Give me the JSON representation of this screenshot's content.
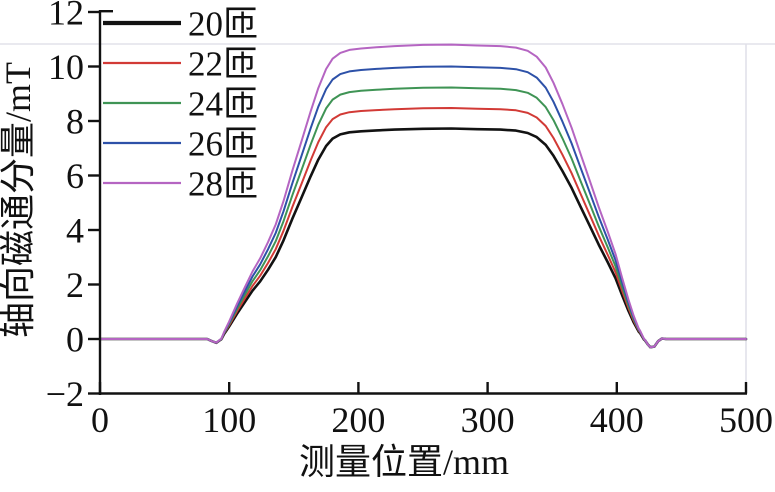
{
  "chart_data": {
    "type": "line",
    "title": "",
    "xlabel": "测量位置/mm",
    "ylabel": "轴向磁通分量/mT",
    "xlim": [
      0,
      500
    ],
    "ylim": [
      -2,
      12
    ],
    "xticks": [
      0,
      100,
      200,
      300,
      400,
      500
    ],
    "yticks": [
      -2,
      0,
      2,
      4,
      6,
      8,
      10,
      12
    ],
    "grid": "off",
    "legend_position": "top-left-inside",
    "series": [
      {
        "name": "20匝",
        "color": "#121212",
        "plateau_mT": 7.7,
        "line_width": 2.6,
        "legend_line_width": 4.2
      },
      {
        "name": "22匝",
        "color": "#d23a36",
        "plateau_mT": 8.45,
        "line_width": 2.0,
        "legend_line_width": 2.2
      },
      {
        "name": "24匝",
        "color": "#3f9455",
        "plateau_mT": 9.2,
        "line_width": 2.0,
        "legend_line_width": 2.2
      },
      {
        "name": "26匝",
        "color": "#2d51a8",
        "plateau_mT": 9.97,
        "line_width": 2.0,
        "legend_line_width": 2.2
      },
      {
        "name": "28匝",
        "color": "#b565c2",
        "plateau_mT": 10.77,
        "line_width": 2.0,
        "legend_line_width": 2.2
      }
    ],
    "profile_note": "All curves share one trapezoidal profile: y(x) = plateau_mT * s(x) + dip(x). Flat 0 until ~86 mm, small dip ~-0.16 mT at ~90 mm, linear-ish rise 95-180 mm, flat top ~185-330 mm, fall 335-420 mm, small undershoot ~-0.3 mT at ~427 mm, flat 0 to 500 mm.",
    "shape_s_points": [
      [
        0,
        0
      ],
      [
        60,
        0
      ],
      [
        86,
        0
      ],
      [
        94,
        0.005
      ],
      [
        100,
        0.06
      ],
      [
        106,
        0.12
      ],
      [
        112,
        0.175
      ],
      [
        118,
        0.23
      ],
      [
        124,
        0.275
      ],
      [
        130,
        0.33
      ],
      [
        136,
        0.39
      ],
      [
        142,
        0.47
      ],
      [
        149,
        0.575
      ],
      [
        156,
        0.675
      ],
      [
        163,
        0.775
      ],
      [
        169,
        0.855
      ],
      [
        175,
        0.92
      ],
      [
        180,
        0.955
      ],
      [
        186,
        0.975
      ],
      [
        193,
        0.985
      ],
      [
        202,
        0.99
      ],
      [
        214,
        0.994
      ],
      [
        228,
        0.998
      ],
      [
        250,
        1.002
      ],
      [
        272,
        1.003
      ],
      [
        292,
        1.0
      ],
      [
        310,
        0.998
      ],
      [
        322,
        0.993
      ],
      [
        331,
        0.982
      ],
      [
        338,
        0.962
      ],
      [
        345,
        0.925
      ],
      [
        351,
        0.873
      ],
      [
        358,
        0.8
      ],
      [
        365,
        0.72
      ],
      [
        372,
        0.63
      ],
      [
        379,
        0.54
      ],
      [
        386,
        0.45
      ],
      [
        393,
        0.365
      ],
      [
        399,
        0.29
      ],
      [
        404,
        0.21
      ],
      [
        409,
        0.135
      ],
      [
        413,
        0.08
      ],
      [
        417,
        0.035
      ],
      [
        421,
        0.008
      ],
      [
        424,
        0
      ],
      [
        460,
        0
      ],
      [
        500,
        0
      ]
    ],
    "dip_points_mT": [
      [
        0,
        0
      ],
      [
        83,
        0
      ],
      [
        87,
        -0.09
      ],
      [
        90,
        -0.16
      ],
      [
        93,
        -0.07
      ],
      [
        96,
        0
      ],
      [
        418,
        0
      ],
      [
        422,
        -0.1
      ],
      [
        426,
        -0.3
      ],
      [
        429,
        -0.28
      ],
      [
        432,
        -0.08
      ],
      [
        435,
        0.02
      ],
      [
        438,
        0
      ],
      [
        500,
        0
      ]
    ]
  },
  "style": {
    "axis_color": "#111111",
    "faint_line_color": "#e3e3ea",
    "background": "#ffffff"
  }
}
